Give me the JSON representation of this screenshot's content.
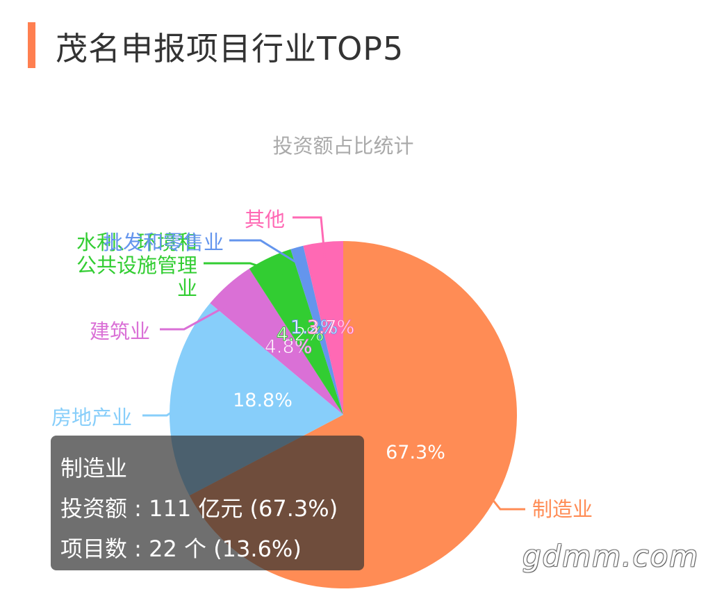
{
  "header": {
    "title": "茂名申报项目行业TOP5",
    "accent_color": "#ff7f50"
  },
  "chart_data": {
    "type": "pie",
    "title": "投资额占比统计",
    "slices": [
      {
        "name": "制造业",
        "value": 67.3,
        "label": "67.3%",
        "color": "#ff8c55"
      },
      {
        "name": "房地产业",
        "value": 18.8,
        "label": "18.8%",
        "color": "#87cefa"
      },
      {
        "name": "建筑业",
        "value": 4.8,
        "label": "4.8%",
        "color": "#da70d6"
      },
      {
        "name": "水利、环境和公共设施管理业",
        "value": 4.2,
        "label": "4.2%",
        "color": "#32cd32"
      },
      {
        "name": "批发和零售业",
        "value": 1.2,
        "label": "1.2%",
        "color": "#6495ed"
      },
      {
        "name": "其他",
        "value": 3.7,
        "label": "3.7%",
        "color": "#ff69b4"
      }
    ]
  },
  "tooltip": {
    "title": "制造业",
    "line1": "投资额 : 111 亿元 (67.3%)",
    "line2": "项目数 : 22 个 (13.6%)"
  },
  "watermark": "gdmm.com"
}
